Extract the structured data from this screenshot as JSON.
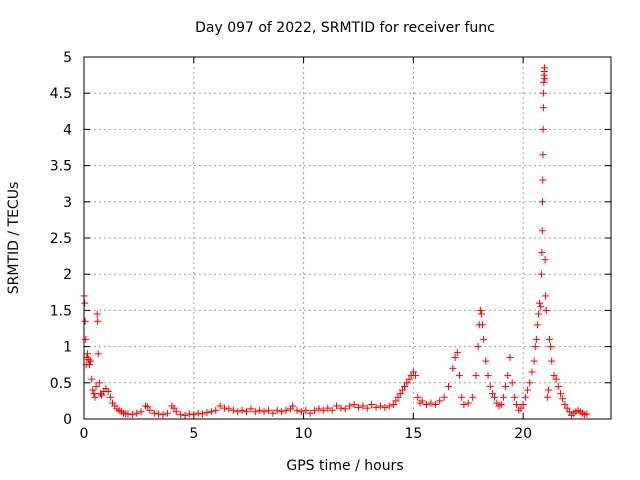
{
  "chart_data": {
    "type": "scatter",
    "title": "Day 097 of 2022, SRMTID for receiver func",
    "xlabel": "GPS time / hours",
    "ylabel": "SRMTID / TECUs",
    "xlim": [
      0,
      24
    ],
    "ylim": [
      0,
      5
    ],
    "grid": true,
    "x_ticks": [
      0,
      5,
      10,
      15,
      20
    ],
    "x_tick_labels": [
      "0",
      "5",
      "10",
      "15",
      "20"
    ],
    "y_ticks": [
      0,
      0.5,
      1,
      1.5,
      2,
      2.5,
      3,
      3.5,
      4,
      4.5,
      5
    ],
    "y_tick_labels": [
      "0",
      "0.5",
      "1",
      "1.5",
      "2",
      "2.5",
      "3",
      "3.5",
      "4",
      "4.5",
      "5"
    ],
    "marker": "+",
    "marker_color": "#ff0000",
    "series": [
      {
        "name": "SRMTID",
        "points": [
          [
            0.0,
            1.7
          ],
          [
            0.03,
            1.6
          ],
          [
            0.05,
            1.35
          ],
          [
            0.08,
            1.1
          ],
          [
            0.1,
            0.75
          ],
          [
            0.13,
            0.85
          ],
          [
            0.16,
            0.9
          ],
          [
            0.2,
            0.82
          ],
          [
            0.25,
            0.75
          ],
          [
            0.3,
            0.8
          ],
          [
            0.35,
            0.55
          ],
          [
            0.4,
            0.4
          ],
          [
            0.45,
            0.35
          ],
          [
            0.5,
            0.3
          ],
          [
            0.55,
            0.45
          ],
          [
            0.6,
            1.45
          ],
          [
            0.62,
            1.35
          ],
          [
            0.65,
            0.9
          ],
          [
            0.7,
            0.5
          ],
          [
            0.75,
            0.35
          ],
          [
            0.8,
            0.33
          ],
          [
            0.9,
            0.38
          ],
          [
            1.0,
            0.42
          ],
          [
            1.1,
            0.38
          ],
          [
            1.2,
            0.3
          ],
          [
            1.3,
            0.22
          ],
          [
            1.4,
            0.18
          ],
          [
            1.5,
            0.14
          ],
          [
            1.6,
            0.12
          ],
          [
            1.7,
            0.1
          ],
          [
            1.8,
            0.08
          ],
          [
            1.9,
            0.07
          ],
          [
            2.0,
            0.07
          ],
          [
            2.2,
            0.06
          ],
          [
            2.4,
            0.08
          ],
          [
            2.6,
            0.1
          ],
          [
            2.8,
            0.18
          ],
          [
            2.9,
            0.17
          ],
          [
            3.0,
            0.12
          ],
          [
            3.2,
            0.08
          ],
          [
            3.4,
            0.07
          ],
          [
            3.6,
            0.06
          ],
          [
            3.8,
            0.08
          ],
          [
            4.0,
            0.18
          ],
          [
            4.1,
            0.15
          ],
          [
            4.2,
            0.1
          ],
          [
            4.4,
            0.06
          ],
          [
            4.6,
            0.05
          ],
          [
            4.8,
            0.07
          ],
          [
            5.0,
            0.06
          ],
          [
            5.2,
            0.08
          ],
          [
            5.4,
            0.07
          ],
          [
            5.6,
            0.09
          ],
          [
            5.8,
            0.1
          ],
          [
            6.0,
            0.12
          ],
          [
            6.2,
            0.18
          ],
          [
            6.4,
            0.15
          ],
          [
            6.6,
            0.14
          ],
          [
            6.8,
            0.12
          ],
          [
            7.0,
            0.1
          ],
          [
            7.2,
            0.12
          ],
          [
            7.4,
            0.1
          ],
          [
            7.6,
            0.14
          ],
          [
            7.8,
            0.1
          ],
          [
            8.0,
            0.12
          ],
          [
            8.2,
            0.1
          ],
          [
            8.4,
            0.12
          ],
          [
            8.6,
            0.08
          ],
          [
            8.8,
            0.12
          ],
          [
            9.0,
            0.1
          ],
          [
            9.2,
            0.12
          ],
          [
            9.4,
            0.14
          ],
          [
            9.5,
            0.18
          ],
          [
            9.7,
            0.12
          ],
          [
            9.9,
            0.1
          ],
          [
            10.1,
            0.12
          ],
          [
            10.3,
            0.08
          ],
          [
            10.5,
            0.12
          ],
          [
            10.7,
            0.14
          ],
          [
            10.9,
            0.12
          ],
          [
            11.1,
            0.15
          ],
          [
            11.3,
            0.12
          ],
          [
            11.5,
            0.18
          ],
          [
            11.7,
            0.15
          ],
          [
            11.9,
            0.14
          ],
          [
            12.1,
            0.18
          ],
          [
            12.3,
            0.2
          ],
          [
            12.5,
            0.16
          ],
          [
            12.7,
            0.18
          ],
          [
            12.9,
            0.15
          ],
          [
            13.1,
            0.2
          ],
          [
            13.3,
            0.16
          ],
          [
            13.5,
            0.18
          ],
          [
            13.7,
            0.16
          ],
          [
            13.9,
            0.18
          ],
          [
            14.1,
            0.2
          ],
          [
            14.2,
            0.25
          ],
          [
            14.3,
            0.3
          ],
          [
            14.4,
            0.35
          ],
          [
            14.5,
            0.4
          ],
          [
            14.6,
            0.45
          ],
          [
            14.7,
            0.5
          ],
          [
            14.8,
            0.55
          ],
          [
            14.9,
            0.6
          ],
          [
            15.0,
            0.65
          ],
          [
            15.1,
            0.6
          ],
          [
            15.2,
            0.3
          ],
          [
            15.3,
            0.22
          ],
          [
            15.4,
            0.25
          ],
          [
            15.6,
            0.2
          ],
          [
            15.8,
            0.22
          ],
          [
            16.0,
            0.2
          ],
          [
            16.2,
            0.25
          ],
          [
            16.4,
            0.3
          ],
          [
            16.6,
            0.45
          ],
          [
            16.8,
            0.7
          ],
          [
            16.9,
            0.85
          ],
          [
            17.0,
            0.92
          ],
          [
            17.1,
            0.6
          ],
          [
            17.2,
            0.3
          ],
          [
            17.3,
            0.2
          ],
          [
            17.5,
            0.22
          ],
          [
            17.7,
            0.3
          ],
          [
            17.85,
            0.6
          ],
          [
            17.95,
            1.0
          ],
          [
            18.0,
            1.3
          ],
          [
            18.05,
            1.5
          ],
          [
            18.1,
            1.45
          ],
          [
            18.15,
            1.3
          ],
          [
            18.2,
            1.1
          ],
          [
            18.3,
            0.8
          ],
          [
            18.4,
            0.6
          ],
          [
            18.5,
            0.45
          ],
          [
            18.6,
            0.35
          ],
          [
            18.7,
            0.3
          ],
          [
            18.8,
            0.22
          ],
          [
            18.9,
            0.18
          ],
          [
            19.0,
            0.2
          ],
          [
            19.1,
            0.3
          ],
          [
            19.2,
            0.45
          ],
          [
            19.3,
            0.6
          ],
          [
            19.4,
            0.85
          ],
          [
            19.5,
            0.5
          ],
          [
            19.6,
            0.3
          ],
          [
            19.7,
            0.2
          ],
          [
            19.8,
            0.12
          ],
          [
            19.9,
            0.15
          ],
          [
            20.0,
            0.2
          ],
          [
            20.1,
            0.3
          ],
          [
            20.2,
            0.4
          ],
          [
            20.3,
            0.5
          ],
          [
            20.4,
            0.65
          ],
          [
            20.5,
            0.8
          ],
          [
            20.55,
            1.0
          ],
          [
            20.6,
            1.1
          ],
          [
            20.65,
            1.3
          ],
          [
            20.7,
            1.45
          ],
          [
            20.75,
            1.6
          ],
          [
            20.8,
            1.55
          ],
          [
            20.83,
            2.0
          ],
          [
            20.85,
            2.3
          ],
          [
            20.87,
            2.6
          ],
          [
            20.88,
            3.0
          ],
          [
            20.89,
            3.3
          ],
          [
            20.9,
            3.65
          ],
          [
            20.91,
            4.0
          ],
          [
            20.92,
            4.3
          ],
          [
            20.93,
            4.5
          ],
          [
            20.94,
            4.65
          ],
          [
            20.95,
            4.75
          ],
          [
            20.96,
            4.8
          ],
          [
            20.97,
            4.85
          ],
          [
            20.98,
            4.7
          ],
          [
            21.0,
            2.2
          ],
          [
            21.02,
            1.7
          ],
          [
            21.05,
            1.5
          ],
          [
            21.1,
            0.3
          ],
          [
            21.15,
            0.4
          ],
          [
            21.2,
            1.1
          ],
          [
            21.25,
            1.0
          ],
          [
            21.3,
            0.8
          ],
          [
            21.4,
            0.6
          ],
          [
            21.5,
            0.55
          ],
          [
            21.6,
            0.45
          ],
          [
            21.7,
            0.35
          ],
          [
            21.8,
            0.28
          ],
          [
            21.9,
            0.2
          ],
          [
            22.0,
            0.15
          ],
          [
            22.1,
            0.1
          ],
          [
            22.2,
            0.05
          ],
          [
            22.3,
            0.08
          ],
          [
            22.4,
            0.1
          ],
          [
            22.5,
            0.12
          ],
          [
            22.6,
            0.1
          ],
          [
            22.7,
            0.08
          ],
          [
            22.8,
            0.06
          ],
          [
            22.9,
            0.07
          ]
        ]
      }
    ]
  }
}
